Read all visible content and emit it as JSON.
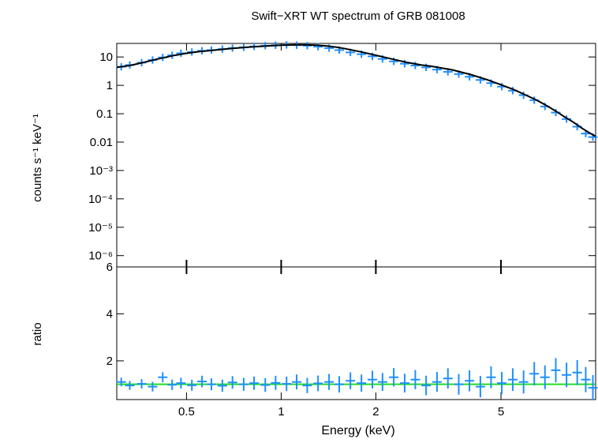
{
  "chart_data": {
    "title": "Swift−XRT WT spectrum of GRB 081008",
    "type": "scatter",
    "xlabel": "Energy (keV)",
    "x_scale": "log",
    "xlim": [
      0.3,
      10
    ],
    "x_ticks": [
      {
        "value": 0.5,
        "label": "0.5"
      },
      {
        "value": 1,
        "label": "1"
      },
      {
        "value": 2,
        "label": "2"
      },
      {
        "value": 5,
        "label": "5"
      }
    ],
    "colors": {
      "data": "#1e90ff",
      "model": "#000000",
      "unity": "#22dd22",
      "axes": "#000000"
    },
    "panels": [
      {
        "name": "spectrum",
        "ylabel": "counts s⁻¹ keV⁻¹",
        "y_scale": "log",
        "ylim": [
          4e-07,
          30
        ],
        "y_ticks": [
          {
            "value": 10,
            "label": "10"
          },
          {
            "value": 1,
            "label": "1"
          },
          {
            "value": 0.1,
            "label": "0.1"
          },
          {
            "value": 0.01,
            "label": "0.01"
          },
          {
            "value": 0.001,
            "label": "10⁻³"
          },
          {
            "value": 0.0001,
            "label": "10⁻⁴"
          },
          {
            "value": 1e-05,
            "label": "10⁻⁵"
          },
          {
            "value": 1e-06,
            "label": "10⁻⁶"
          }
        ],
        "series": [
          {
            "role": "data",
            "x": [
              0.31,
              0.33,
              0.36,
              0.39,
              0.42,
              0.45,
              0.48,
              0.52,
              0.56,
              0.6,
              0.65,
              0.7,
              0.76,
              0.82,
              0.89,
              0.96,
              1.04,
              1.12,
              1.21,
              1.31,
              1.42,
              1.53,
              1.66,
              1.8,
              1.95,
              2.1,
              2.28,
              2.47,
              2.67,
              2.89,
              3.13,
              3.39,
              3.67,
              3.97,
              4.3,
              4.65,
              5.03,
              5.45,
              5.9,
              6.38,
              6.9,
              7.47,
              8.08,
              8.74,
              9.3,
              9.8
            ],
            "y": [
              4.5,
              5.2,
              6.3,
              7.8,
              9.6,
              11.5,
              13.5,
              15,
              16.5,
              17.5,
              19,
              20.5,
              22,
              23.5,
              25,
              26,
              26.5,
              26,
              25,
              23,
              20.5,
              17.5,
              14.5,
              12.5,
              10.5,
              8.5,
              7,
              5.8,
              5,
              4.3,
              3.6,
              3,
              2.5,
              2,
              1.55,
              1.2,
              0.9,
              0.65,
              0.45,
              0.3,
              0.18,
              0.11,
              0.065,
              0.035,
              0.02,
              0.015
            ]
          },
          {
            "role": "model",
            "x": [
              0.3,
              0.33,
              0.36,
              0.4,
              0.45,
              0.5,
              0.55,
              0.6,
              0.7,
              0.8,
              0.9,
              1.0,
              1.1,
              1.2,
              1.3,
              1.4,
              1.5,
              1.6,
              1.8,
              2.0,
              2.2,
              2.5,
              2.8,
              3.0,
              3.5,
              4.0,
              4.5,
              5.0,
              5.5,
              6.0,
              6.5,
              7.0,
              7.5,
              8.0,
              8.5,
              9.0,
              9.5,
              10.0
            ],
            "y": [
              4.3,
              5.0,
              6.2,
              8.2,
              11,
              13.5,
              15.5,
              17,
              20,
              22.5,
              24.5,
              26,
              26.8,
              26.8,
              26,
              24.5,
              22,
              19.5,
              15,
              11.5,
              9,
              6.5,
              5.2,
              4.7,
              3.5,
              2.4,
              1.6,
              1.05,
              0.7,
              0.45,
              0.3,
              0.19,
              0.12,
              0.075,
              0.05,
              0.032,
              0.022,
              0.016
            ]
          }
        ]
      },
      {
        "name": "ratio",
        "ylabel": "ratio",
        "y_scale": "linear",
        "ylim": [
          0.35,
          6
        ],
        "y_ticks": [
          {
            "value": 2,
            "label": "2"
          },
          {
            "value": 4,
            "label": "4"
          },
          {
            "value": 6,
            "label": "6"
          }
        ],
        "series": [
          {
            "role": "data",
            "x": [
              0.31,
              0.33,
              0.36,
              0.39,
              0.42,
              0.45,
              0.48,
              0.52,
              0.56,
              0.6,
              0.65,
              0.7,
              0.76,
              0.82,
              0.89,
              0.96,
              1.04,
              1.12,
              1.21,
              1.31,
              1.42,
              1.53,
              1.66,
              1.8,
              1.95,
              2.1,
              2.28,
              2.47,
              2.67,
              2.89,
              3.13,
              3.39,
              3.67,
              3.97,
              4.3,
              4.65,
              5.03,
              5.45,
              5.9,
              6.38,
              6.9,
              7.47,
              8.08,
              8.74,
              9.3,
              9.8
            ],
            "y": [
              1.1,
              0.95,
              1.02,
              0.9,
              1.3,
              0.98,
              1.05,
              0.96,
              1.12,
              1.0,
              0.94,
              1.08,
              1.0,
              1.05,
              0.97,
              1.06,
              1.02,
              1.1,
              0.95,
              1.04,
              1.1,
              1.0,
              1.15,
              1.05,
              1.2,
              1.1,
              1.3,
              1.05,
              1.2,
              0.95,
              1.1,
              1.25,
              1.0,
              1.15,
              0.9,
              1.3,
              1.05,
              1.2,
              1.1,
              1.45,
              1.3,
              1.6,
              1.4,
              1.5,
              1.2,
              0.85
            ]
          },
          {
            "role": "unity",
            "x": [
              0.3,
              10
            ],
            "y": [
              1,
              1
            ]
          }
        ]
      }
    ]
  }
}
